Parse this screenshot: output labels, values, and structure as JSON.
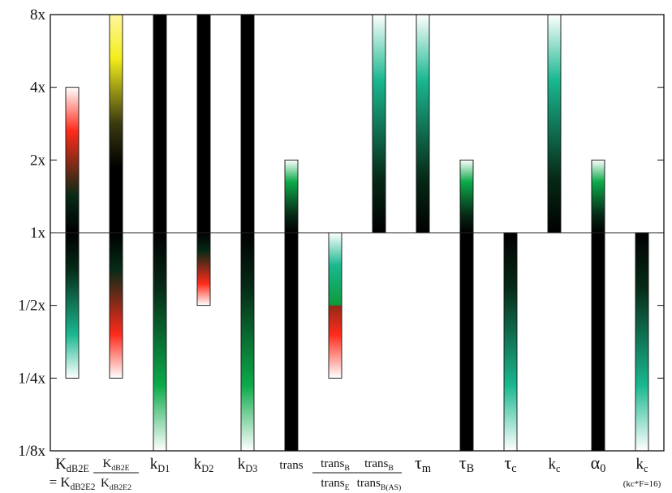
{
  "chart_data": {
    "type": "bar",
    "title": "",
    "xlabel": "",
    "ylabel": "",
    "scale": "log2",
    "ylim": [
      0.125,
      8
    ],
    "baseline": 1,
    "y_ticks": [
      {
        "value": 8,
        "label": "8x"
      },
      {
        "value": 4,
        "label": "4x"
      },
      {
        "value": 2,
        "label": "2x"
      },
      {
        "value": 1,
        "label": "1x"
      },
      {
        "value": 0.5,
        "label": "1/2x"
      },
      {
        "value": 0.25,
        "label": "1/4x"
      },
      {
        "value": 0.125,
        "label": "1/8x"
      }
    ],
    "grid": false,
    "legend": "none",
    "colors": {
      "red": "#ff2a1a",
      "green": "#0caa4a",
      "teal": "#1ab890",
      "yellow": "#f4ee1a",
      "black": "#000000"
    },
    "bars": [
      {
        "name": "KdB2E",
        "label": {
          "main": "K",
          "sub": "dB2E",
          "line2_prefix": "= K",
          "line2_sub": "dB2E2"
        },
        "low": 0.25,
        "high": 4,
        "low_color": "teal",
        "high_color": "red"
      },
      {
        "name": "KdB2E/KdB2E2",
        "label": {
          "num_main": "K",
          "num_sub": "dB2E",
          "den_main": "K",
          "den_sub": "dB2E2"
        },
        "low": 0.25,
        "high": 8,
        "low_color": "red",
        "high_color": "yellow"
      },
      {
        "name": "kD1",
        "label": {
          "main": "k",
          "sub": "D1"
        },
        "low": 0.125,
        "high": 8,
        "low_color": "green",
        "high_color": "black"
      },
      {
        "name": "kD2",
        "label": {
          "main": "k",
          "sub": "D2"
        },
        "low": 0.5,
        "high": 8,
        "low_color": "red",
        "high_color": "black"
      },
      {
        "name": "kD3",
        "label": {
          "main": "k",
          "sub": "D3"
        },
        "low": 0.125,
        "high": 8,
        "low_color": "green",
        "high_color": "black"
      },
      {
        "name": "trans",
        "label": {
          "main": "trans"
        },
        "low": 0.125,
        "high": 2,
        "low_color": "black",
        "high_color": "green"
      },
      {
        "name": "transB/transE",
        "label": {
          "num_main": "trans",
          "num_sub": "B",
          "den_main": "trans",
          "den_sub": "E"
        },
        "low": 0.25,
        "high": 1,
        "low_color": "red",
        "high_color": "none"
      },
      {
        "name": "transB/transB(AS)",
        "label": {
          "num_main": "trans",
          "num_sub": "B",
          "den_main": "trans",
          "den_sub": "B(AS)"
        },
        "low": 1,
        "high": 8,
        "low_color": "none",
        "high_color": "teal"
      },
      {
        "name": "τm",
        "label": {
          "main": "τ",
          "sub": "m"
        },
        "low": 1,
        "high": 8,
        "low_color": "none",
        "high_color": "teal"
      },
      {
        "name": "τB",
        "label": {
          "main": "τ",
          "sub": "B"
        },
        "low": 0.125,
        "high": 2,
        "low_color": "black",
        "high_color": "green"
      },
      {
        "name": "τc",
        "label": {
          "main": "τ",
          "sub": "c"
        },
        "low": 0.125,
        "high": 1,
        "low_color": "teal",
        "high_color": "none"
      },
      {
        "name": "kc",
        "label": {
          "main": "k",
          "sub": "c"
        },
        "low": 1,
        "high": 8,
        "low_color": "none",
        "high_color": "teal"
      },
      {
        "name": "α0",
        "label": {
          "main": "α",
          "sub": "0"
        },
        "low": 0.125,
        "high": 2,
        "low_color": "black",
        "high_color": "green"
      },
      {
        "name": "kc (kc*F=16)",
        "label": {
          "main": "k",
          "sub": "c",
          "note": "(kc*F=16)"
        },
        "low": 0.125,
        "high": 1,
        "low_color": "teal",
        "high_color": "none"
      }
    ]
  }
}
